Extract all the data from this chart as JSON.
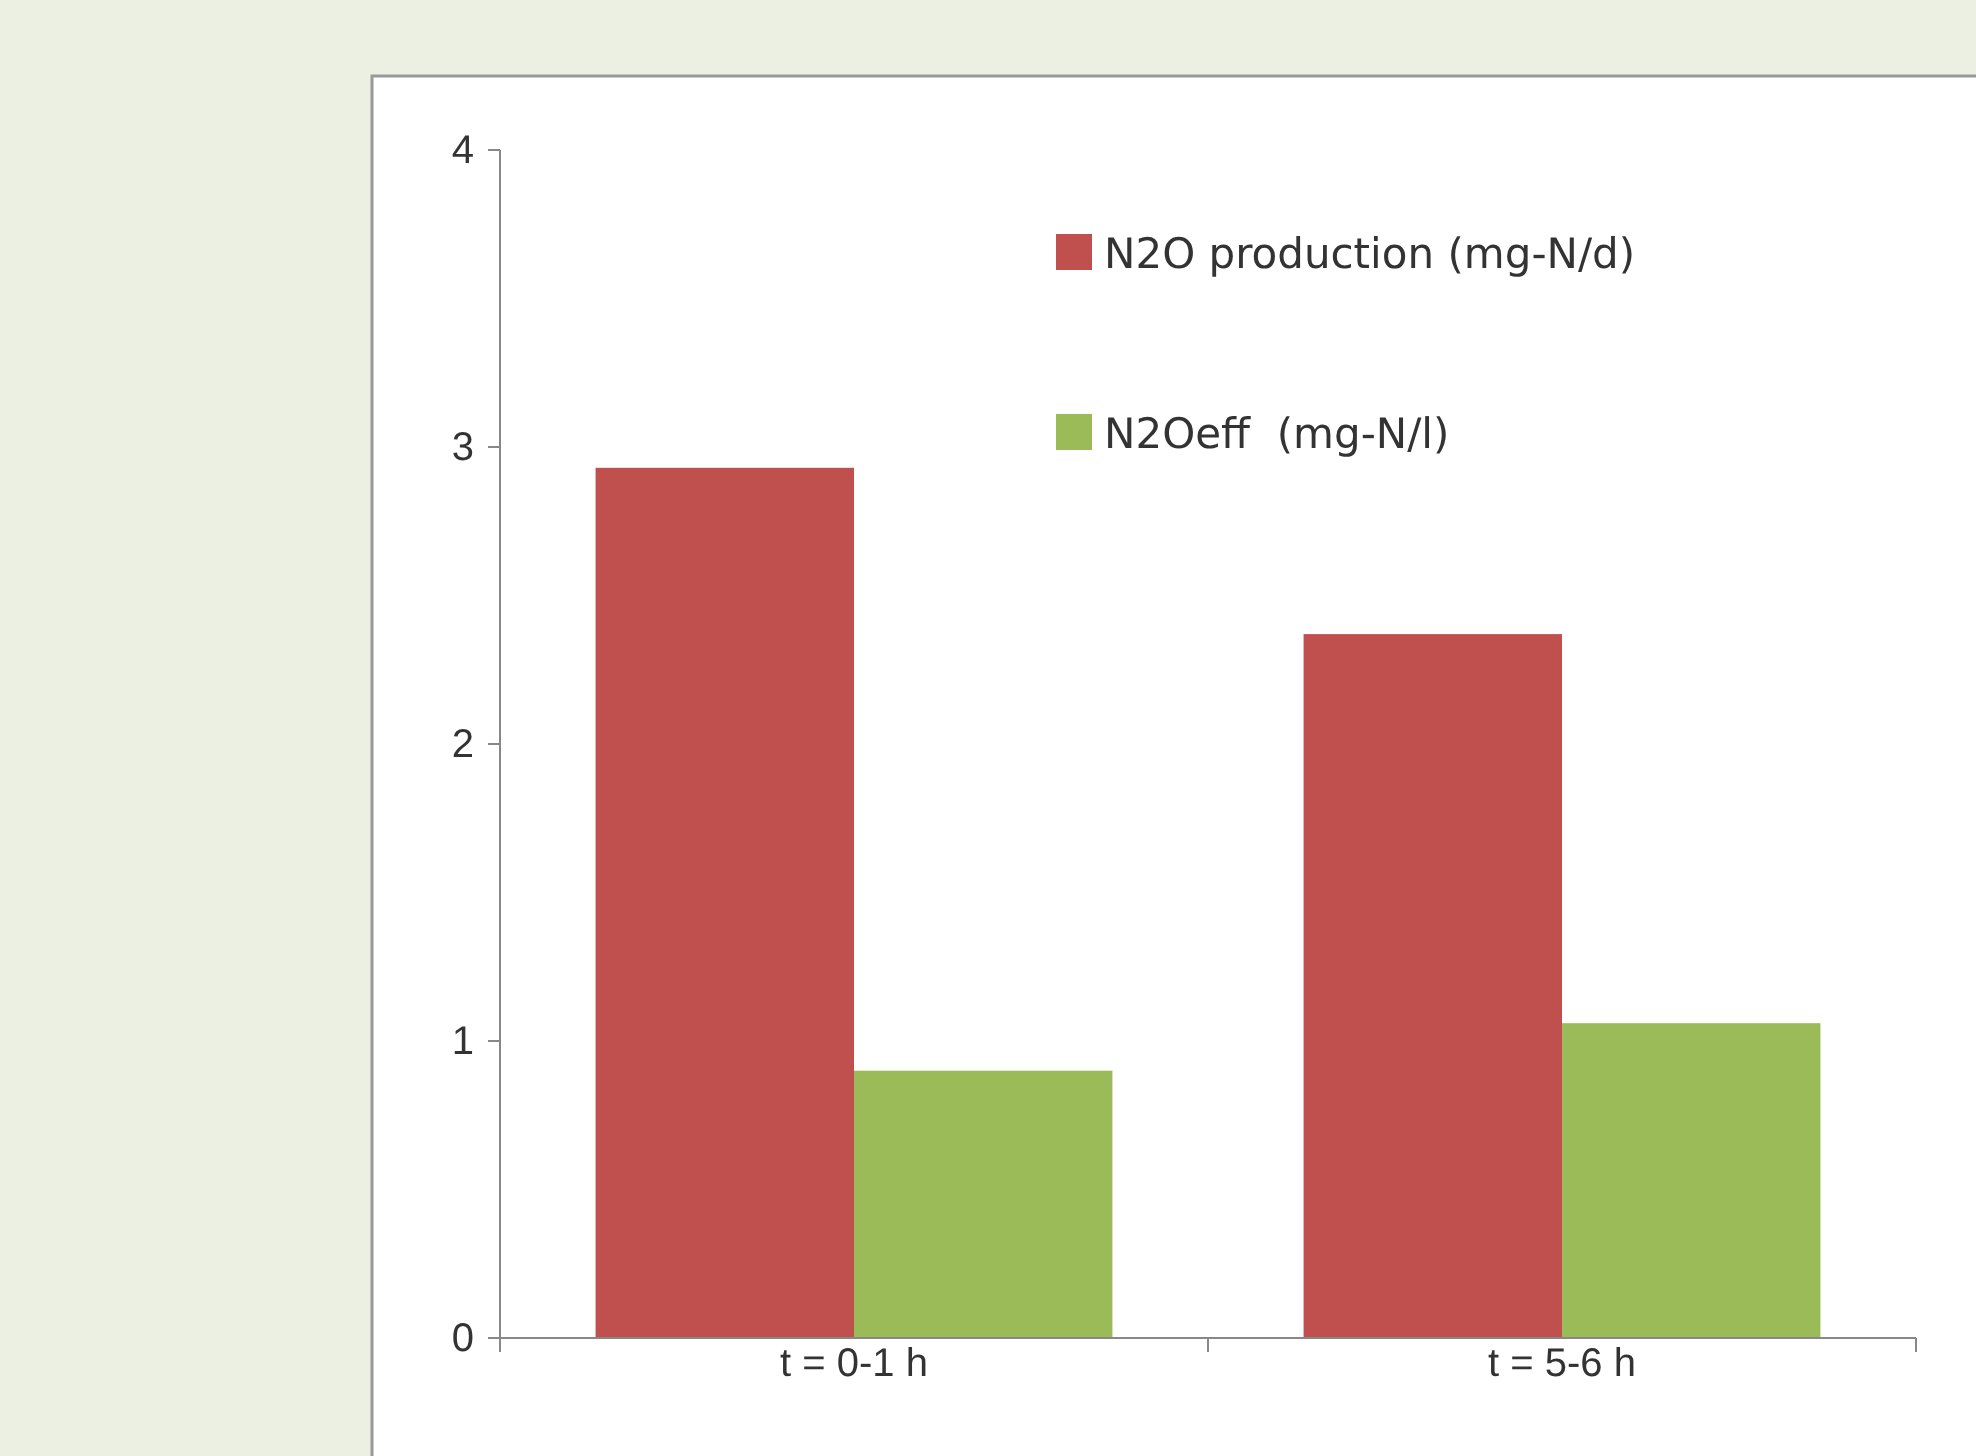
{
  "chart_data": {
    "type": "bar",
    "categories": [
      "t = 0-1 h",
      "t = 5-6 h"
    ],
    "series": [
      {
        "name": "N2O production (mg-N/d)",
        "color": "#c0504d",
        "values": [
          2.93,
          2.37
        ]
      },
      {
        "name": "N2Oeff  (mg-N/l)",
        "color": "#9bbb59",
        "values": [
          0.9,
          1.06
        ]
      }
    ],
    "ylim": [
      0,
      4
    ],
    "yticks": [
      0,
      1,
      2,
      3,
      4
    ],
    "grid": false,
    "legend": "top right"
  }
}
